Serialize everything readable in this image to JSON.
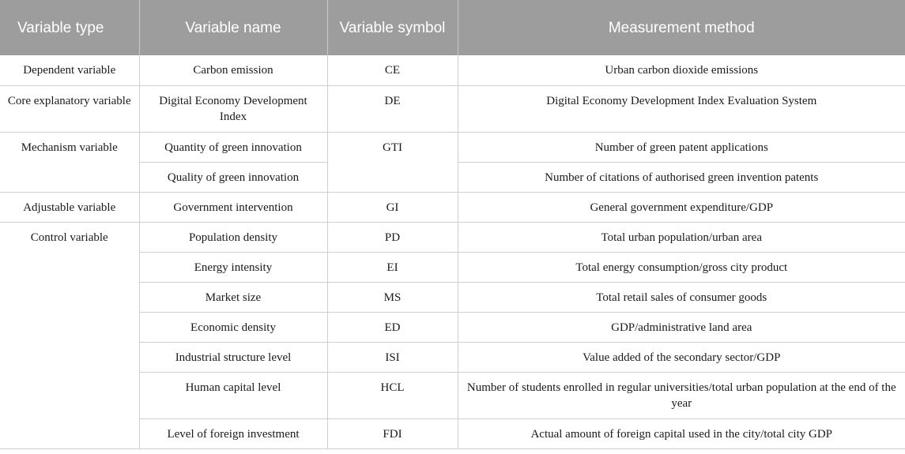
{
  "table": {
    "headers": [
      "Variable type",
      "Variable name",
      "Variable symbol",
      "Measurement method"
    ],
    "rows": [
      {
        "type": "Dependent variable",
        "name": "Carbon emission",
        "symbol": "CE",
        "method": "Urban carbon dioxide emissions"
      },
      {
        "type": "Core explanatory variable",
        "name": "Digital Economy Development Index",
        "symbol": "DE",
        "method": "Digital Economy Development Index Evaluation System"
      },
      {
        "type": "Mechanism variable",
        "name": "Quantity of green innovation",
        "symbol": "GTI",
        "method": "Number of green patent applications"
      },
      {
        "type": "",
        "name": "Quality of green innovation",
        "symbol": "",
        "method": "Number of citations of authorised green invention patents"
      },
      {
        "type": "Adjustable variable",
        "name": "Government intervention",
        "symbol": "GI",
        "method": "General government expenditure/GDP"
      },
      {
        "type": "Control variable",
        "name": "Population density",
        "symbol": "PD",
        "method": "Total urban population/urban area"
      },
      {
        "type": "",
        "name": "Energy intensity",
        "symbol": "EI",
        "method": "Total energy consumption/gross city product"
      },
      {
        "type": "",
        "name": "Market size",
        "symbol": "MS",
        "method": "Total retail sales of consumer goods"
      },
      {
        "type": "",
        "name": "Economic density",
        "symbol": "ED",
        "method": "GDP/administrative land area"
      },
      {
        "type": "",
        "name": "Industrial structure level",
        "symbol": "ISI",
        "method": "Value added of the secondary sector/GDP"
      },
      {
        "type": "",
        "name": "Human capital level",
        "symbol": "HCL",
        "method": "Number of students enrolled in regular universities/total urban population at the end of the year"
      },
      {
        "type": "",
        "name": "Level of foreign investment",
        "symbol": "FDI",
        "method": "Actual amount of foreign capital used in the city/total city GDP"
      }
    ]
  }
}
